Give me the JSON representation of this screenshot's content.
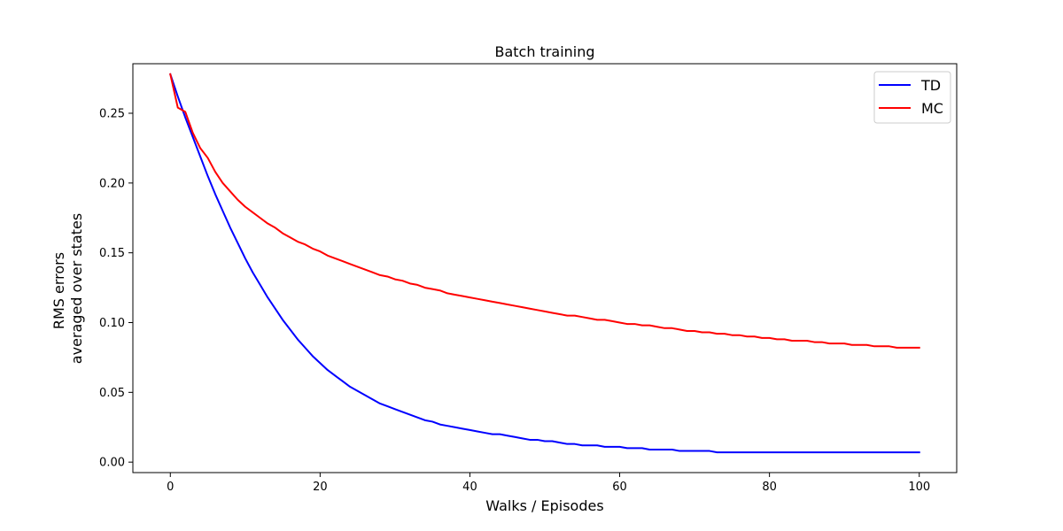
{
  "chart_data": {
    "type": "line",
    "title": "Batch training",
    "xlabel": "Walks / Episodes",
    "ylabel_lines": [
      "RMS errors",
      "averaged over states"
    ],
    "xlim": [
      -5,
      105
    ],
    "ylim": [
      -0.0075,
      0.2855
    ],
    "xticks": [
      0,
      20,
      40,
      60,
      80,
      100
    ],
    "yticks": [
      0.0,
      0.05,
      0.1,
      0.15,
      0.2,
      0.25
    ],
    "ytick_labels": [
      "0.00",
      "0.05",
      "0.10",
      "0.15",
      "0.20",
      "0.25"
    ],
    "grid": false,
    "legend": "top-right",
    "series": [
      {
        "name": "TD",
        "color": "#0000ff",
        "x": [
          0,
          1,
          2,
          3,
          4,
          5,
          6,
          7,
          8,
          9,
          10,
          11,
          12,
          13,
          14,
          15,
          16,
          17,
          18,
          19,
          20,
          21,
          22,
          23,
          24,
          25,
          26,
          27,
          28,
          29,
          30,
          31,
          32,
          33,
          34,
          35,
          36,
          37,
          38,
          39,
          40,
          41,
          42,
          43,
          44,
          45,
          46,
          47,
          48,
          49,
          50,
          51,
          52,
          53,
          54,
          55,
          56,
          57,
          58,
          59,
          60,
          61,
          62,
          63,
          64,
          65,
          66,
          67,
          68,
          69,
          70,
          71,
          72,
          73,
          74,
          75,
          76,
          77,
          78,
          79,
          80,
          81,
          82,
          83,
          84,
          85,
          86,
          87,
          88,
          89,
          90,
          91,
          92,
          93,
          94,
          95,
          96,
          97,
          98,
          99,
          100
        ],
        "y": [
          0.278,
          0.262,
          0.247,
          0.233,
          0.219,
          0.205,
          0.192,
          0.18,
          0.168,
          0.157,
          0.146,
          0.136,
          0.127,
          0.118,
          0.11,
          0.102,
          0.095,
          0.088,
          0.082,
          0.076,
          0.071,
          0.066,
          0.062,
          0.058,
          0.054,
          0.051,
          0.048,
          0.045,
          0.042,
          0.04,
          0.038,
          0.036,
          0.034,
          0.032,
          0.03,
          0.029,
          0.027,
          0.026,
          0.025,
          0.024,
          0.023,
          0.022,
          0.021,
          0.02,
          0.02,
          0.019,
          0.018,
          0.017,
          0.016,
          0.016,
          0.015,
          0.015,
          0.014,
          0.013,
          0.013,
          0.012,
          0.012,
          0.012,
          0.011,
          0.011,
          0.011,
          0.01,
          0.01,
          0.01,
          0.009,
          0.009,
          0.009,
          0.009,
          0.008,
          0.008,
          0.008,
          0.008,
          0.008,
          0.007,
          0.007,
          0.007,
          0.007,
          0.007,
          0.007,
          0.007,
          0.007,
          0.007,
          0.007,
          0.007,
          0.007,
          0.007,
          0.007,
          0.007,
          0.007,
          0.007,
          0.007,
          0.007,
          0.007,
          0.007,
          0.007,
          0.007,
          0.007,
          0.007,
          0.007,
          0.007,
          0.007
        ]
      },
      {
        "name": "MC",
        "color": "#ff0000",
        "x": [
          0,
          1,
          2,
          3,
          4,
          5,
          6,
          7,
          8,
          9,
          10,
          11,
          12,
          13,
          14,
          15,
          16,
          17,
          18,
          19,
          20,
          21,
          22,
          23,
          24,
          25,
          26,
          27,
          28,
          29,
          30,
          31,
          32,
          33,
          34,
          35,
          36,
          37,
          38,
          39,
          40,
          41,
          42,
          43,
          44,
          45,
          46,
          47,
          48,
          49,
          50,
          51,
          52,
          53,
          54,
          55,
          56,
          57,
          58,
          59,
          60,
          61,
          62,
          63,
          64,
          65,
          66,
          67,
          68,
          69,
          70,
          71,
          72,
          73,
          74,
          75,
          76,
          77,
          78,
          79,
          80,
          81,
          82,
          83,
          84,
          85,
          86,
          87,
          88,
          89,
          90,
          91,
          92,
          93,
          94,
          95,
          96,
          97,
          98,
          99,
          100
        ],
        "y": [
          0.278,
          0.254,
          0.251,
          0.236,
          0.225,
          0.218,
          0.208,
          0.2,
          0.194,
          0.188,
          0.183,
          0.179,
          0.175,
          0.171,
          0.168,
          0.164,
          0.161,
          0.158,
          0.156,
          0.153,
          0.151,
          0.148,
          0.146,
          0.144,
          0.142,
          0.14,
          0.138,
          0.136,
          0.134,
          0.133,
          0.131,
          0.13,
          0.128,
          0.127,
          0.125,
          0.124,
          0.123,
          0.121,
          0.12,
          0.119,
          0.118,
          0.117,
          0.116,
          0.115,
          0.114,
          0.113,
          0.112,
          0.111,
          0.11,
          0.109,
          0.108,
          0.107,
          0.106,
          0.105,
          0.105,
          0.104,
          0.103,
          0.102,
          0.102,
          0.101,
          0.1,
          0.099,
          0.099,
          0.098,
          0.098,
          0.097,
          0.096,
          0.096,
          0.095,
          0.094,
          0.094,
          0.093,
          0.093,
          0.092,
          0.092,
          0.091,
          0.091,
          0.09,
          0.09,
          0.089,
          0.089,
          0.088,
          0.088,
          0.087,
          0.087,
          0.087,
          0.086,
          0.086,
          0.085,
          0.085,
          0.085,
          0.084,
          0.084,
          0.084,
          0.083,
          0.083,
          0.083,
          0.082,
          0.082,
          0.082,
          0.082
        ]
      }
    ]
  }
}
